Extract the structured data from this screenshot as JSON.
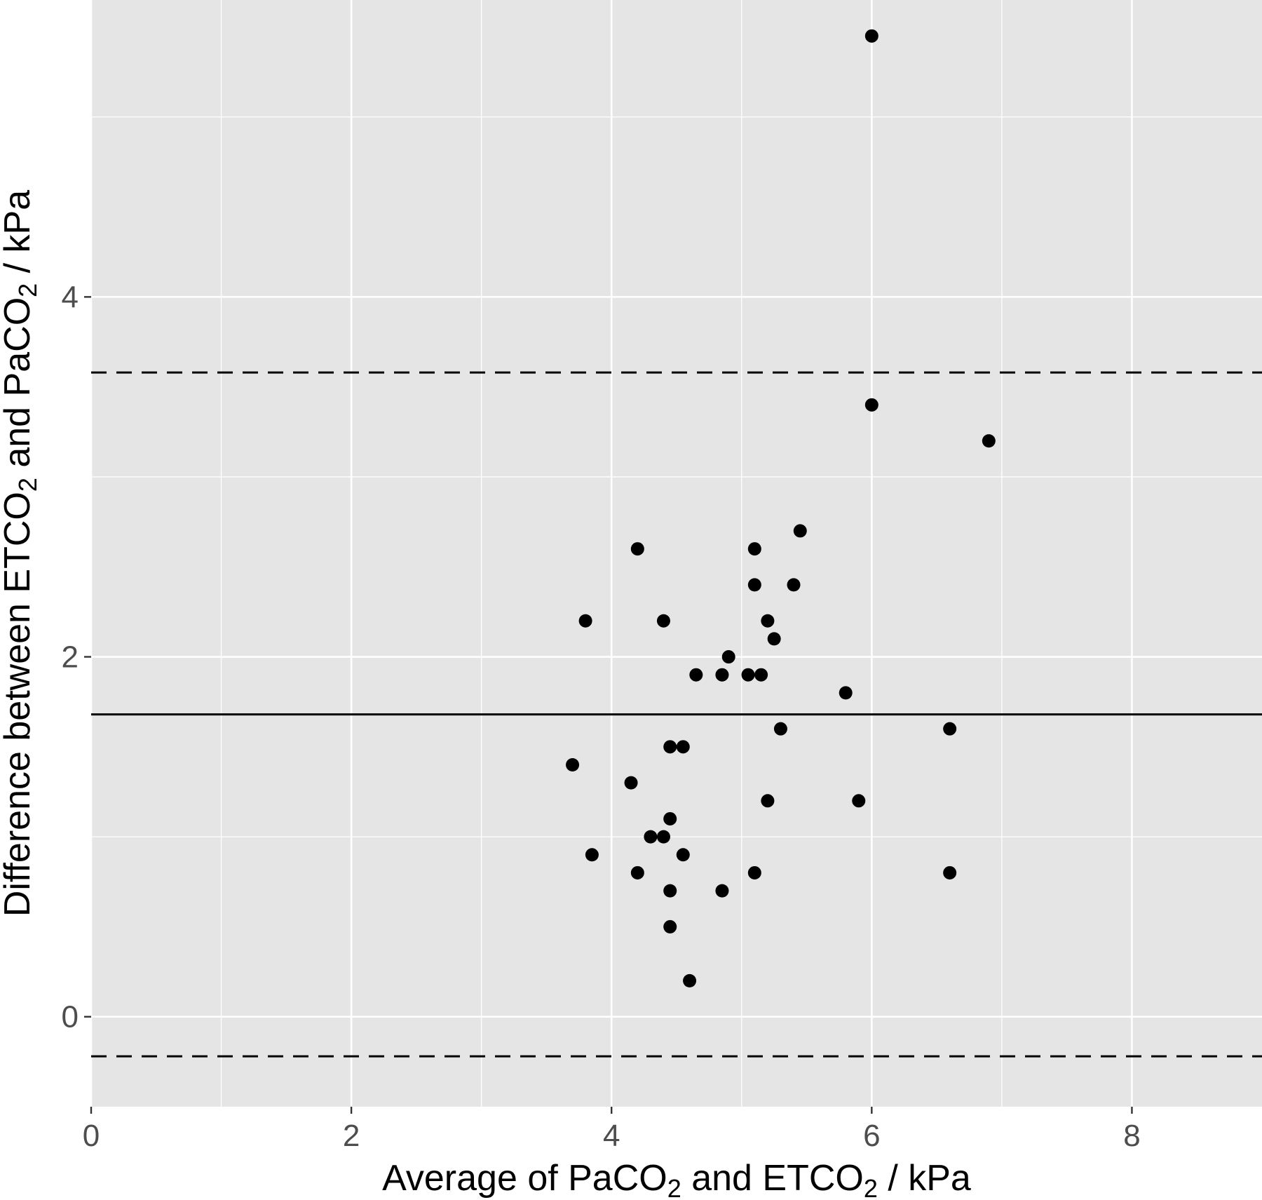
{
  "chart_data": {
    "type": "scatter",
    "xlabel": {
      "parts": [
        "Average of PaCO",
        "2",
        " and ETCO",
        "2",
        "  / kPa"
      ]
    },
    "ylabel": {
      "parts": [
        "Difference between ETCO",
        "2",
        " and PaCO",
        "2",
        "  / kPa"
      ]
    },
    "xlim": [
      0,
      9
    ],
    "ylim": [
      -0.5,
      5.65
    ],
    "x_ticks": [
      0,
      2,
      4,
      6,
      8
    ],
    "y_ticks": [
      0,
      2,
      4
    ],
    "x_tick_labels": [
      "0",
      "2",
      "4",
      "6",
      "8"
    ],
    "y_tick_labels": [
      "0",
      "2",
      "4"
    ],
    "grid": true,
    "mean_line": 1.68,
    "limits_of_agreement": [
      3.58,
      -0.22
    ],
    "points": [
      {
        "x": 6.0,
        "y": 5.45
      },
      {
        "x": 6.0,
        "y": 3.4
      },
      {
        "x": 6.9,
        "y": 3.2
      },
      {
        "x": 5.45,
        "y": 2.7
      },
      {
        "x": 4.2,
        "y": 2.6
      },
      {
        "x": 5.1,
        "y": 2.6
      },
      {
        "x": 5.1,
        "y": 2.4
      },
      {
        "x": 5.4,
        "y": 2.4
      },
      {
        "x": 3.8,
        "y": 2.2
      },
      {
        "x": 4.4,
        "y": 2.2
      },
      {
        "x": 5.2,
        "y": 2.2
      },
      {
        "x": 5.25,
        "y": 2.1
      },
      {
        "x": 4.9,
        "y": 2.0
      },
      {
        "x": 4.65,
        "y": 1.9
      },
      {
        "x": 4.85,
        "y": 1.9
      },
      {
        "x": 5.05,
        "y": 1.9
      },
      {
        "x": 5.15,
        "y": 1.9
      },
      {
        "x": 5.8,
        "y": 1.8
      },
      {
        "x": 5.3,
        "y": 1.6
      },
      {
        "x": 6.6,
        "y": 1.6
      },
      {
        "x": 4.45,
        "y": 1.5
      },
      {
        "x": 4.55,
        "y": 1.5
      },
      {
        "x": 3.7,
        "y": 1.4
      },
      {
        "x": 4.15,
        "y": 1.3
      },
      {
        "x": 5.2,
        "y": 1.2
      },
      {
        "x": 5.9,
        "y": 1.2
      },
      {
        "x": 4.45,
        "y": 1.1
      },
      {
        "x": 4.3,
        "y": 1.0
      },
      {
        "x": 4.4,
        "y": 1.0
      },
      {
        "x": 3.85,
        "y": 0.9
      },
      {
        "x": 4.55,
        "y": 0.9
      },
      {
        "x": 4.2,
        "y": 0.8
      },
      {
        "x": 5.1,
        "y": 0.8
      },
      {
        "x": 6.6,
        "y": 0.8
      },
      {
        "x": 4.45,
        "y": 0.7
      },
      {
        "x": 4.85,
        "y": 0.7
      },
      {
        "x": 4.45,
        "y": 0.5
      },
      {
        "x": 4.6,
        "y": 0.2
      }
    ],
    "colors": {
      "panel": "#e5e5e5",
      "grid": "#ffffff",
      "point": "#000000",
      "line": "#000000",
      "tick_text": "#4d4d4d"
    }
  }
}
